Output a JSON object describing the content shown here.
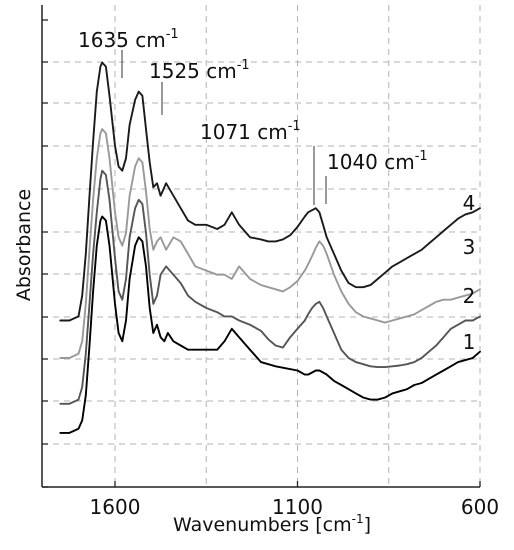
{
  "chart_data": {
    "type": "line",
    "title": "",
    "xlabel": "Wavenumbers [cm",
    "xlabel_sup": "-1",
    "xlabel_end": "]",
    "ylabel": "Absorbance",
    "x_reversed": true,
    "xlim": [
      1800,
      600
    ],
    "x_ticks": [
      {
        "value": 1600,
        "label": "1600"
      },
      {
        "value": 1100,
        "label": "1100"
      },
      {
        "value": 600,
        "label": "600"
      }
    ],
    "y_tick_labels": false,
    "grid": true,
    "ylim": [
      0,
      10.5
    ],
    "annotations": [
      {
        "base": "1635 cm",
        "sup": "-1",
        "x": 1635
      },
      {
        "base": "1525 cm",
        "sup": "-1",
        "x": 1525
      },
      {
        "base": "1071 cm",
        "sup": "-1",
        "x": 1071
      },
      {
        "base": "1040 cm",
        "sup": "-1",
        "x": 1040
      }
    ],
    "series": [
      {
        "name": "1",
        "color": "#000000",
        "x": [
          1750,
          1725,
          1700,
          1690,
          1680,
          1670,
          1660,
          1650,
          1640,
          1635,
          1625,
          1615,
          1600,
          1590,
          1580,
          1570,
          1560,
          1545,
          1535,
          1525,
          1515,
          1505,
          1495,
          1485,
          1475,
          1465,
          1455,
          1440,
          1420,
          1400,
          1380,
          1350,
          1320,
          1300,
          1280,
          1260,
          1230,
          1200,
          1180,
          1160,
          1130,
          1100,
          1080,
          1071,
          1060,
          1050,
          1040,
          1030,
          1020,
          1000,
          980,
          960,
          940,
          920,
          900,
          880,
          860,
          840,
          820,
          800,
          780,
          760,
          740,
          720,
          700,
          680,
          660,
          640,
          620,
          600
        ],
        "y": [
          1.3,
          1.3,
          1.4,
          1.6,
          2.2,
          3.4,
          4.7,
          5.8,
          6.4,
          6.5,
          6.4,
          5.8,
          4.4,
          3.7,
          3.5,
          4.0,
          5.0,
          5.8,
          6.0,
          5.9,
          5.3,
          4.3,
          3.7,
          3.9,
          3.6,
          3.5,
          3.7,
          3.5,
          3.4,
          3.3,
          3.3,
          3.3,
          3.3,
          3.5,
          3.8,
          3.6,
          3.3,
          3.0,
          2.95,
          2.9,
          2.85,
          2.8,
          2.7,
          2.7,
          2.75,
          2.8,
          2.8,
          2.75,
          2.7,
          2.55,
          2.45,
          2.35,
          2.25,
          2.15,
          2.1,
          2.1,
          2.15,
          2.25,
          2.3,
          2.35,
          2.45,
          2.5,
          2.6,
          2.7,
          2.8,
          2.9,
          3.0,
          3.05,
          3.1,
          3.25
        ]
      },
      {
        "name": "2",
        "color": "#555555",
        "x": [
          1750,
          1725,
          1700,
          1690,
          1680,
          1670,
          1660,
          1650,
          1640,
          1635,
          1625,
          1615,
          1600,
          1590,
          1580,
          1570,
          1560,
          1545,
          1535,
          1525,
          1515,
          1505,
          1495,
          1485,
          1475,
          1460,
          1440,
          1420,
          1400,
          1380,
          1350,
          1320,
          1300,
          1280,
          1260,
          1230,
          1200,
          1180,
          1160,
          1140,
          1120,
          1100,
          1080,
          1071,
          1060,
          1050,
          1040,
          1030,
          1020,
          1000,
          980,
          960,
          940,
          920,
          900,
          880,
          860,
          840,
          820,
          800,
          780,
          760,
          740,
          720,
          700,
          680,
          660,
          640,
          620,
          600
        ],
        "y": [
          2.0,
          2.0,
          2.1,
          2.4,
          3.2,
          4.4,
          5.6,
          6.6,
          7.4,
          7.6,
          7.5,
          6.9,
          5.5,
          4.7,
          4.5,
          5.0,
          6.0,
          6.7,
          6.9,
          6.8,
          6.1,
          5.1,
          4.4,
          4.6,
          5.1,
          5.3,
          5.1,
          4.9,
          4.6,
          4.45,
          4.3,
          4.2,
          4.1,
          4.1,
          4.0,
          3.9,
          3.75,
          3.55,
          3.4,
          3.35,
          3.6,
          3.8,
          4.0,
          4.15,
          4.3,
          4.4,
          4.45,
          4.3,
          4.1,
          3.7,
          3.3,
          3.1,
          3.0,
          2.95,
          2.9,
          2.88,
          2.88,
          2.9,
          2.92,
          2.95,
          3.0,
          3.1,
          3.25,
          3.4,
          3.6,
          3.8,
          3.9,
          4.0,
          4.0,
          4.1
        ]
      },
      {
        "name": "3",
        "color": "#999999",
        "x": [
          1750,
          1725,
          1700,
          1690,
          1680,
          1670,
          1660,
          1650,
          1640,
          1635,
          1625,
          1615,
          1600,
          1590,
          1580,
          1570,
          1560,
          1545,
          1535,
          1525,
          1515,
          1505,
          1495,
          1485,
          1475,
          1460,
          1440,
          1420,
          1400,
          1380,
          1350,
          1320,
          1300,
          1280,
          1260,
          1230,
          1200,
          1180,
          1160,
          1140,
          1120,
          1100,
          1080,
          1071,
          1060,
          1050,
          1040,
          1030,
          1020,
          1000,
          980,
          960,
          940,
          920,
          900,
          880,
          860,
          840,
          820,
          800,
          780,
          760,
          740,
          720,
          700,
          680,
          660,
          640,
          620,
          600
        ],
        "y": [
          3.1,
          3.1,
          3.2,
          3.5,
          4.4,
          5.7,
          6.9,
          7.9,
          8.5,
          8.6,
          8.5,
          7.9,
          6.6,
          6.0,
          5.8,
          6.1,
          7.0,
          7.7,
          7.9,
          7.8,
          7.1,
          6.2,
          5.7,
          5.9,
          6.0,
          5.7,
          6.0,
          5.9,
          5.6,
          5.3,
          5.2,
          5.1,
          5.1,
          5.0,
          5.3,
          5.0,
          4.85,
          4.8,
          4.75,
          4.7,
          4.8,
          4.95,
          5.2,
          5.35,
          5.55,
          5.75,
          5.9,
          5.8,
          5.6,
          5.1,
          4.7,
          4.4,
          4.2,
          4.1,
          4.05,
          4.0,
          3.95,
          4.0,
          4.05,
          4.1,
          4.15,
          4.25,
          4.35,
          4.45,
          4.5,
          4.5,
          4.55,
          4.6,
          4.65,
          4.75
        ]
      },
      {
        "name": "4",
        "color": "#1a1a1a",
        "x": [
          1750,
          1725,
          1700,
          1690,
          1680,
          1670,
          1660,
          1650,
          1640,
          1635,
          1625,
          1615,
          1600,
          1590,
          1580,
          1570,
          1560,
          1545,
          1535,
          1525,
          1515,
          1505,
          1495,
          1485,
          1475,
          1460,
          1440,
          1420,
          1400,
          1380,
          1350,
          1320,
          1300,
          1280,
          1260,
          1230,
          1200,
          1180,
          1160,
          1140,
          1120,
          1100,
          1080,
          1071,
          1060,
          1050,
          1040,
          1030,
          1020,
          1000,
          980,
          960,
          940,
          920,
          900,
          880,
          860,
          840,
          820,
          800,
          780,
          760,
          740,
          720,
          700,
          680,
          660,
          640,
          620,
          600
        ],
        "y": [
          4.0,
          4.0,
          4.1,
          4.6,
          5.6,
          7.0,
          8.3,
          9.5,
          10.1,
          10.2,
          10.1,
          9.4,
          8.2,
          7.7,
          7.6,
          7.9,
          8.7,
          9.3,
          9.5,
          9.4,
          8.6,
          7.8,
          7.2,
          7.3,
          7.0,
          7.3,
          7.0,
          6.7,
          6.4,
          6.3,
          6.3,
          6.2,
          6.3,
          6.6,
          6.3,
          6.0,
          5.95,
          5.9,
          5.9,
          5.95,
          6.05,
          6.25,
          6.5,
          6.6,
          6.65,
          6.7,
          6.6,
          6.3,
          6.0,
          5.6,
          5.2,
          4.9,
          4.8,
          4.8,
          4.85,
          5.0,
          5.15,
          5.3,
          5.4,
          5.5,
          5.6,
          5.7,
          5.85,
          6.0,
          6.15,
          6.3,
          6.45,
          6.55,
          6.6,
          6.7
        ]
      }
    ]
  }
}
